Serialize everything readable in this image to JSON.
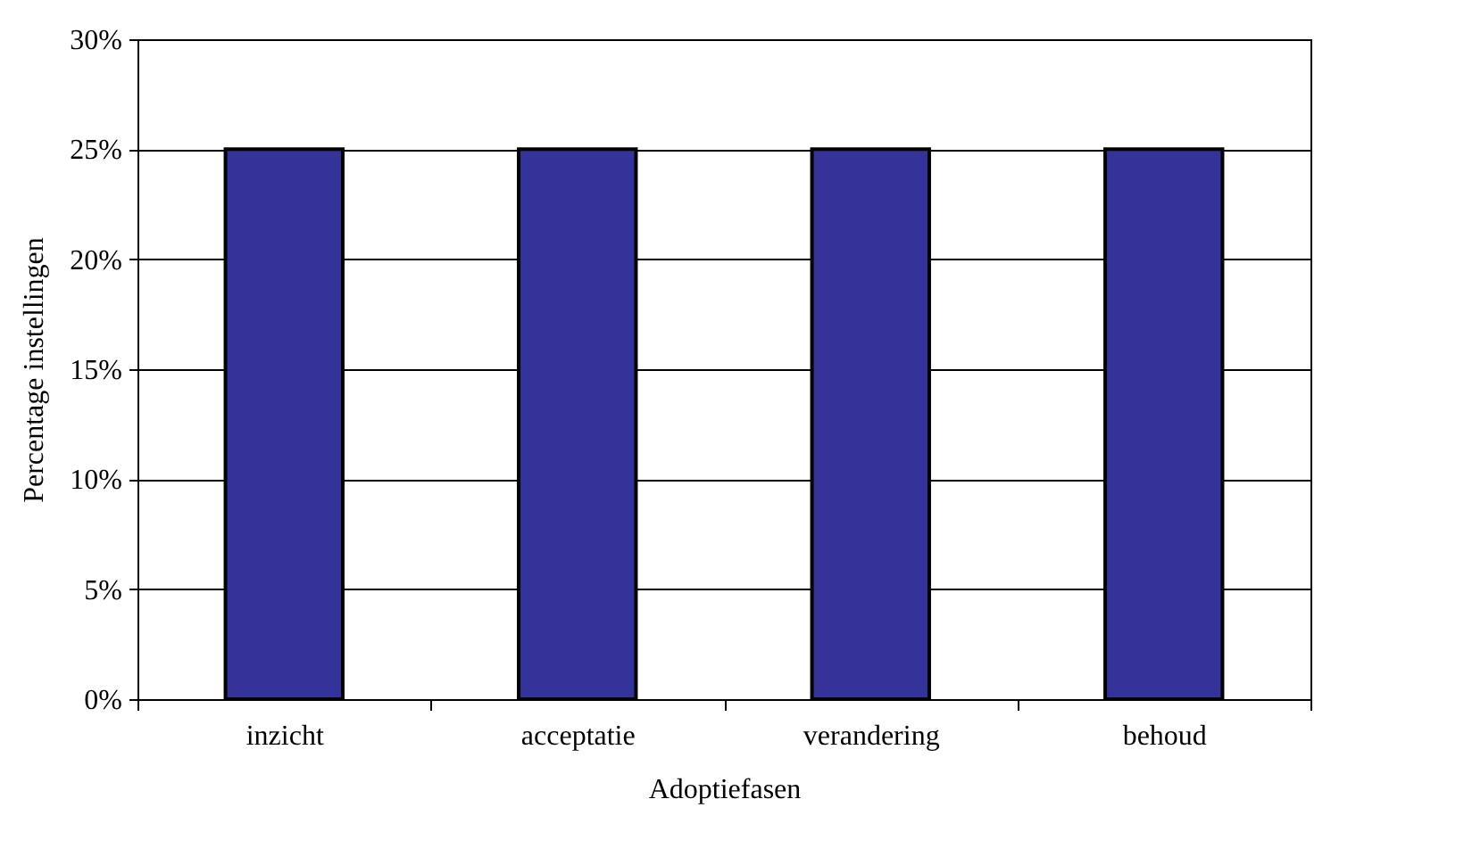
{
  "chart_data": {
    "type": "bar",
    "xlabel": "Adoptiefasen",
    "ylabel": "Percentage instellingen",
    "categories": [
      "inzicht",
      "acceptatie",
      "verandering",
      "behoud"
    ],
    "values": [
      25,
      25,
      25,
      25
    ],
    "color": "#333399",
    "ylim": [
      0,
      30
    ],
    "yticks": [
      {
        "value": 0,
        "label": "0%"
      },
      {
        "value": 5,
        "label": "5%"
      },
      {
        "value": 10,
        "label": "10%"
      },
      {
        "value": 15,
        "label": "15%"
      },
      {
        "value": 20,
        "label": "20%"
      },
      {
        "value": 25,
        "label": "25%"
      },
      {
        "value": 30,
        "label": "30%"
      }
    ],
    "grid": "y"
  }
}
